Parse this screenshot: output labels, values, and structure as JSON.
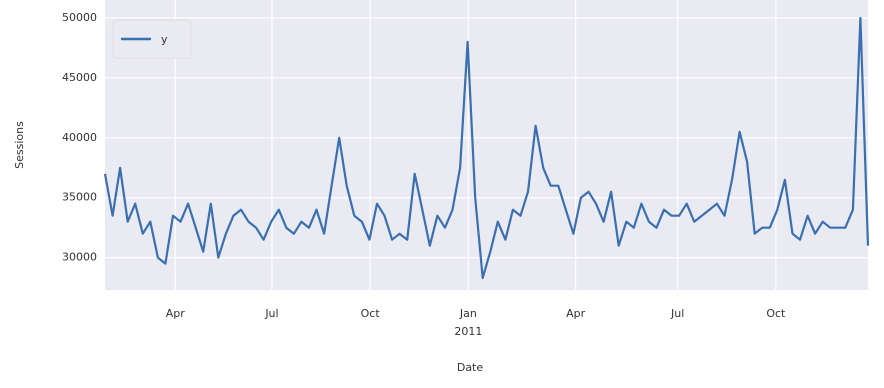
{
  "chart_data": {
    "type": "line",
    "x_label": "Date",
    "y_label": "Sessions",
    "series": [
      {
        "name": "y",
        "color": "#3a6fb0",
        "values": [
          37000,
          33500,
          37500,
          33000,
          34500,
          32000,
          33000,
          30000,
          29500,
          33500,
          33000,
          34500,
          32500,
          30500,
          34500,
          30000,
          32000,
          33500,
          34000,
          33000,
          32500,
          31500,
          33000,
          34000,
          32500,
          32000,
          33000,
          32500,
          34000,
          32000,
          36000,
          40000,
          36000,
          33500,
          33000,
          31500,
          34500,
          33500,
          31500,
          32000,
          31500,
          37000,
          34000,
          31000,
          33500,
          32500,
          34000,
          37500,
          48000,
          35000,
          28300,
          30500,
          33000,
          31500,
          34000,
          33500,
          35500,
          41000,
          37500,
          36000,
          36000,
          34000,
          32000,
          35000,
          35500,
          34500,
          33000,
          35500,
          31000,
          33000,
          32500,
          34500,
          33000,
          32500,
          34000,
          33500,
          33500,
          34500,
          33000,
          33500,
          34000,
          34500,
          33500,
          36500,
          40500,
          38000,
          32000,
          32500,
          32500,
          34000,
          36500,
          32000,
          31500,
          33500,
          32000,
          33000,
          32500,
          32500,
          32500,
          34000,
          50000,
          31000
        ]
      }
    ],
    "xlim": [
      0,
      101
    ],
    "xticks": [
      {
        "value": 9.3,
        "label": "Apr"
      },
      {
        "value": 22.1,
        "label": "Jul"
      },
      {
        "value": 35.1,
        "label": "Oct"
      },
      {
        "value": 48.1,
        "label": "Jan\n2011"
      },
      {
        "value": 62.3,
        "label": "Apr"
      },
      {
        "value": 75.8,
        "label": "Jul"
      },
      {
        "value": 88.8,
        "label": "Oct"
      }
    ],
    "ylim": [
      27300,
      51500
    ],
    "yticks": [
      30000,
      35000,
      40000,
      45000,
      50000
    ],
    "grid": true,
    "legend": "upper left"
  }
}
